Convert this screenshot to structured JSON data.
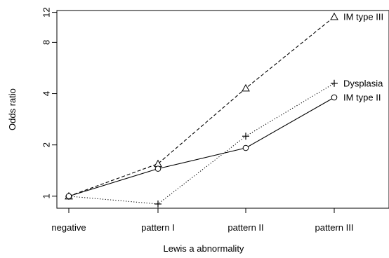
{
  "chart_data": {
    "type": "line",
    "title": "",
    "xlabel": "Lewis a abnormality",
    "ylabel": "Odds ratio",
    "categories": [
      "negative",
      "pattern I",
      "pattern II",
      "pattern III"
    ],
    "y_scale": "log",
    "ylim": [
      0.85,
      12.3
    ],
    "y_ticks": [
      1,
      2,
      4,
      8,
      12
    ],
    "y_tick_labels": [
      "1",
      "2",
      "4",
      "8",
      "12"
    ],
    "grid": false,
    "legend_placement": "labels at right end of each line",
    "series": [
      {
        "name": "IM type III",
        "values": [
          1.0,
          1.55,
          4.3,
          11.3
        ],
        "line_style": "dashed",
        "marker": "triangle",
        "color": "#000000"
      },
      {
        "name": "Dysplasia",
        "values": [
          1.0,
          0.9,
          2.25,
          4.6
        ],
        "line_style": "dotted",
        "marker": "plus",
        "color": "#000000"
      },
      {
        "name": "IM type II",
        "values": [
          1.0,
          1.45,
          1.92,
          3.8
        ],
        "line_style": "solid",
        "marker": "circle",
        "color": "#000000"
      }
    ]
  }
}
